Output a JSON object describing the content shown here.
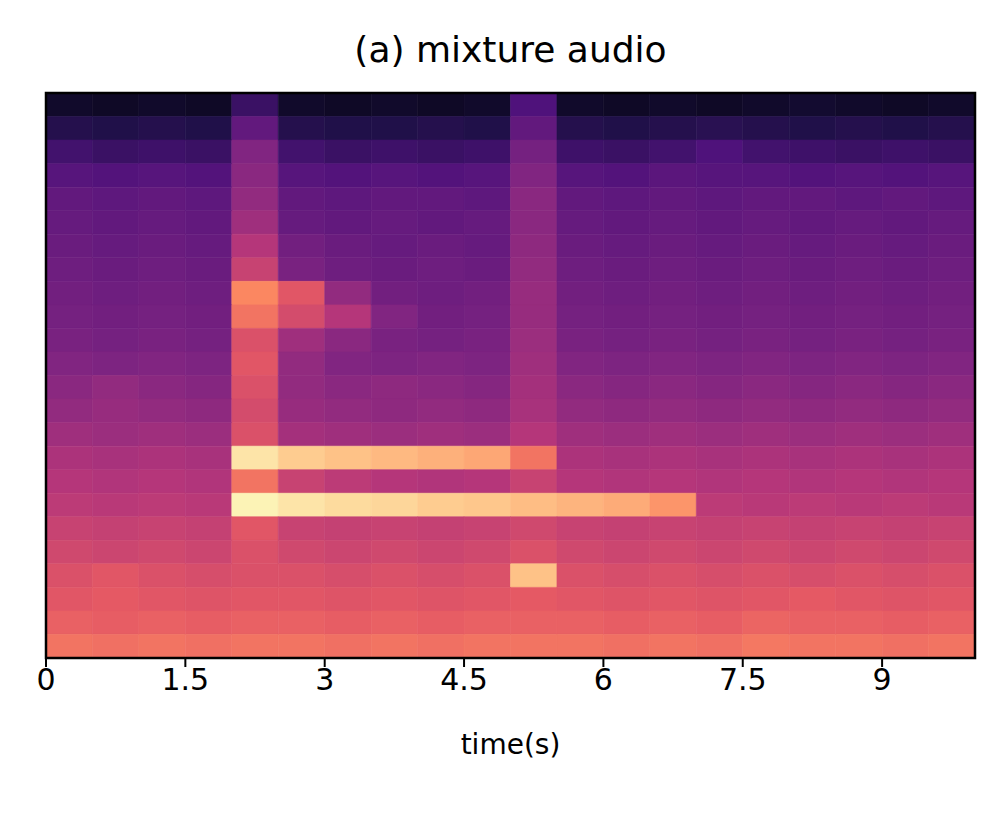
{
  "chart_data": {
    "type": "heatmap",
    "title": "(a) mixture audio",
    "x_label": "time(s)",
    "xlim": [
      0,
      10
    ],
    "xticks": [
      0,
      1.5,
      3,
      4.5,
      6,
      7.5,
      9
    ],
    "ylim": [
      0,
      24
    ],
    "tick_labels": "x",
    "x_bins": [
      0,
      0.5,
      1,
      1.5,
      2,
      2.5,
      3,
      3.5,
      4,
      4.5,
      5,
      5.5,
      6,
      6.5,
      7,
      7.5,
      8,
      8.5,
      9,
      9.5,
      10
    ],
    "cells": [
      [
        0.08,
        0.07,
        0.08,
        0.07,
        0.2,
        0.08,
        0.07,
        0.08,
        0.07,
        0.08,
        0.25,
        0.08,
        0.07,
        0.08,
        0.07,
        0.08,
        0.09,
        0.08,
        0.07,
        0.08
      ],
      [
        0.15,
        0.14,
        0.15,
        0.14,
        0.3,
        0.15,
        0.14,
        0.14,
        0.15,
        0.14,
        0.3,
        0.15,
        0.14,
        0.15,
        0.16,
        0.15,
        0.14,
        0.15,
        0.14,
        0.15
      ],
      [
        0.22,
        0.2,
        0.21,
        0.2,
        0.38,
        0.22,
        0.2,
        0.21,
        0.2,
        0.21,
        0.35,
        0.21,
        0.2,
        0.22,
        0.25,
        0.22,
        0.21,
        0.2,
        0.21,
        0.2
      ],
      [
        0.27,
        0.26,
        0.27,
        0.26,
        0.4,
        0.27,
        0.26,
        0.27,
        0.26,
        0.27,
        0.38,
        0.27,
        0.26,
        0.28,
        0.27,
        0.27,
        0.26,
        0.27,
        0.26,
        0.27
      ],
      [
        0.3,
        0.29,
        0.3,
        0.29,
        0.42,
        0.3,
        0.29,
        0.3,
        0.3,
        0.29,
        0.4,
        0.3,
        0.29,
        0.3,
        0.29,
        0.3,
        0.3,
        0.29,
        0.3,
        0.29
      ],
      [
        0.31,
        0.3,
        0.31,
        0.3,
        0.45,
        0.31,
        0.3,
        0.31,
        0.3,
        0.31,
        0.4,
        0.31,
        0.3,
        0.31,
        0.3,
        0.31,
        0.3,
        0.31,
        0.3,
        0.31
      ],
      [
        0.32,
        0.31,
        0.32,
        0.31,
        0.5,
        0.34,
        0.32,
        0.31,
        0.32,
        0.31,
        0.41,
        0.32,
        0.31,
        0.32,
        0.31,
        0.32,
        0.31,
        0.32,
        0.31,
        0.32
      ],
      [
        0.33,
        0.32,
        0.33,
        0.32,
        0.55,
        0.36,
        0.33,
        0.32,
        0.33,
        0.32,
        0.42,
        0.33,
        0.32,
        0.33,
        0.32,
        0.33,
        0.32,
        0.33,
        0.32,
        0.33
      ],
      [
        0.34,
        0.33,
        0.34,
        0.33,
        0.75,
        0.62,
        0.42,
        0.34,
        0.33,
        0.34,
        0.43,
        0.34,
        0.33,
        0.34,
        0.33,
        0.34,
        0.33,
        0.34,
        0.33,
        0.34
      ],
      [
        0.35,
        0.34,
        0.35,
        0.34,
        0.7,
        0.58,
        0.5,
        0.38,
        0.34,
        0.35,
        0.43,
        0.35,
        0.34,
        0.35,
        0.34,
        0.35,
        0.34,
        0.35,
        0.34,
        0.35
      ],
      [
        0.36,
        0.35,
        0.36,
        0.35,
        0.6,
        0.45,
        0.4,
        0.36,
        0.35,
        0.36,
        0.44,
        0.36,
        0.35,
        0.36,
        0.35,
        0.36,
        0.35,
        0.36,
        0.35,
        0.36
      ],
      [
        0.38,
        0.37,
        0.38,
        0.37,
        0.62,
        0.42,
        0.38,
        0.37,
        0.38,
        0.37,
        0.45,
        0.38,
        0.37,
        0.38,
        0.37,
        0.38,
        0.37,
        0.38,
        0.37,
        0.38
      ],
      [
        0.4,
        0.42,
        0.4,
        0.39,
        0.6,
        0.42,
        0.4,
        0.41,
        0.4,
        0.39,
        0.46,
        0.4,
        0.39,
        0.4,
        0.39,
        0.4,
        0.39,
        0.4,
        0.39,
        0.4
      ],
      [
        0.42,
        0.43,
        0.42,
        0.41,
        0.58,
        0.43,
        0.42,
        0.41,
        0.42,
        0.41,
        0.47,
        0.42,
        0.41,
        0.42,
        0.41,
        0.42,
        0.41,
        0.42,
        0.41,
        0.42
      ],
      [
        0.45,
        0.44,
        0.45,
        0.44,
        0.6,
        0.46,
        0.45,
        0.44,
        0.45,
        0.44,
        0.5,
        0.45,
        0.44,
        0.45,
        0.44,
        0.45,
        0.44,
        0.45,
        0.44,
        0.45
      ],
      [
        0.48,
        0.47,
        0.48,
        0.47,
        0.95,
        0.9,
        0.88,
        0.86,
        0.84,
        0.82,
        0.7,
        0.48,
        0.47,
        0.48,
        0.47,
        0.48,
        0.47,
        0.48,
        0.47,
        0.48
      ],
      [
        0.5,
        0.49,
        0.5,
        0.49,
        0.7,
        0.55,
        0.52,
        0.5,
        0.49,
        0.5,
        0.55,
        0.5,
        0.49,
        0.5,
        0.49,
        0.5,
        0.49,
        0.5,
        0.49,
        0.5
      ],
      [
        0.52,
        0.51,
        0.52,
        0.51,
        0.98,
        0.95,
        0.93,
        0.92,
        0.9,
        0.89,
        0.87,
        0.85,
        0.83,
        0.78,
        0.52,
        0.51,
        0.52,
        0.51,
        0.52,
        0.51
      ],
      [
        0.55,
        0.54,
        0.55,
        0.54,
        0.62,
        0.55,
        0.54,
        0.55,
        0.54,
        0.55,
        0.57,
        0.55,
        0.54,
        0.55,
        0.54,
        0.55,
        0.54,
        0.55,
        0.54,
        0.55
      ],
      [
        0.57,
        0.56,
        0.57,
        0.56,
        0.6,
        0.57,
        0.56,
        0.57,
        0.56,
        0.57,
        0.6,
        0.57,
        0.56,
        0.57,
        0.56,
        0.57,
        0.56,
        0.57,
        0.56,
        0.57
      ],
      [
        0.6,
        0.62,
        0.6,
        0.59,
        0.6,
        0.6,
        0.59,
        0.6,
        0.59,
        0.6,
        0.88,
        0.6,
        0.59,
        0.6,
        0.59,
        0.6,
        0.59,
        0.6,
        0.59,
        0.6
      ],
      [
        0.62,
        0.63,
        0.62,
        0.61,
        0.62,
        0.62,
        0.61,
        0.62,
        0.61,
        0.62,
        0.63,
        0.62,
        0.61,
        0.62,
        0.61,
        0.62,
        0.63,
        0.62,
        0.61,
        0.62
      ],
      [
        0.65,
        0.64,
        0.65,
        0.64,
        0.65,
        0.65,
        0.64,
        0.65,
        0.64,
        0.65,
        0.65,
        0.65,
        0.64,
        0.65,
        0.64,
        0.66,
        0.65,
        0.65,
        0.64,
        0.65
      ],
      [
        0.7,
        0.69,
        0.7,
        0.69,
        0.7,
        0.7,
        0.69,
        0.7,
        0.69,
        0.7,
        0.7,
        0.7,
        0.69,
        0.7,
        0.69,
        0.71,
        0.7,
        0.7,
        0.69,
        0.7
      ]
    ]
  }
}
